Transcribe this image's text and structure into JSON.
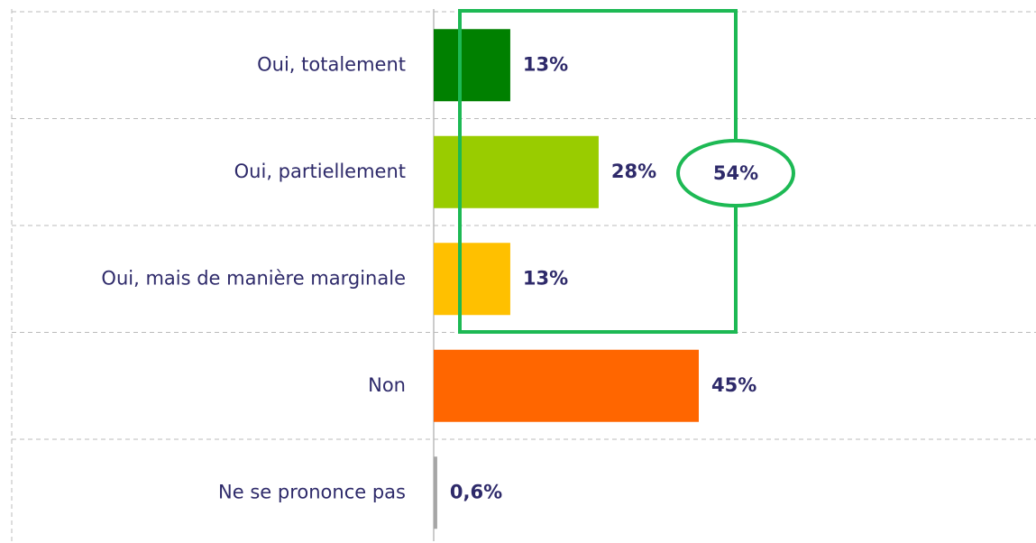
{
  "chart_data": {
    "type": "bar",
    "orientation": "horizontal",
    "categories": [
      "Oui, totalement",
      "Oui, partiellement",
      "Oui, mais de manière marginale",
      "Non",
      "Ne se prononce pas"
    ],
    "values": [
      13,
      28,
      13,
      45,
      0.6
    ],
    "value_labels": [
      "13%",
      "28%",
      "13%",
      "45%",
      "0,6%"
    ],
    "colors": [
      "#008000",
      "#99cc00",
      "#ffc000",
      "#ff6600",
      "#a6a6a6"
    ],
    "annotation": "54%"
  }
}
